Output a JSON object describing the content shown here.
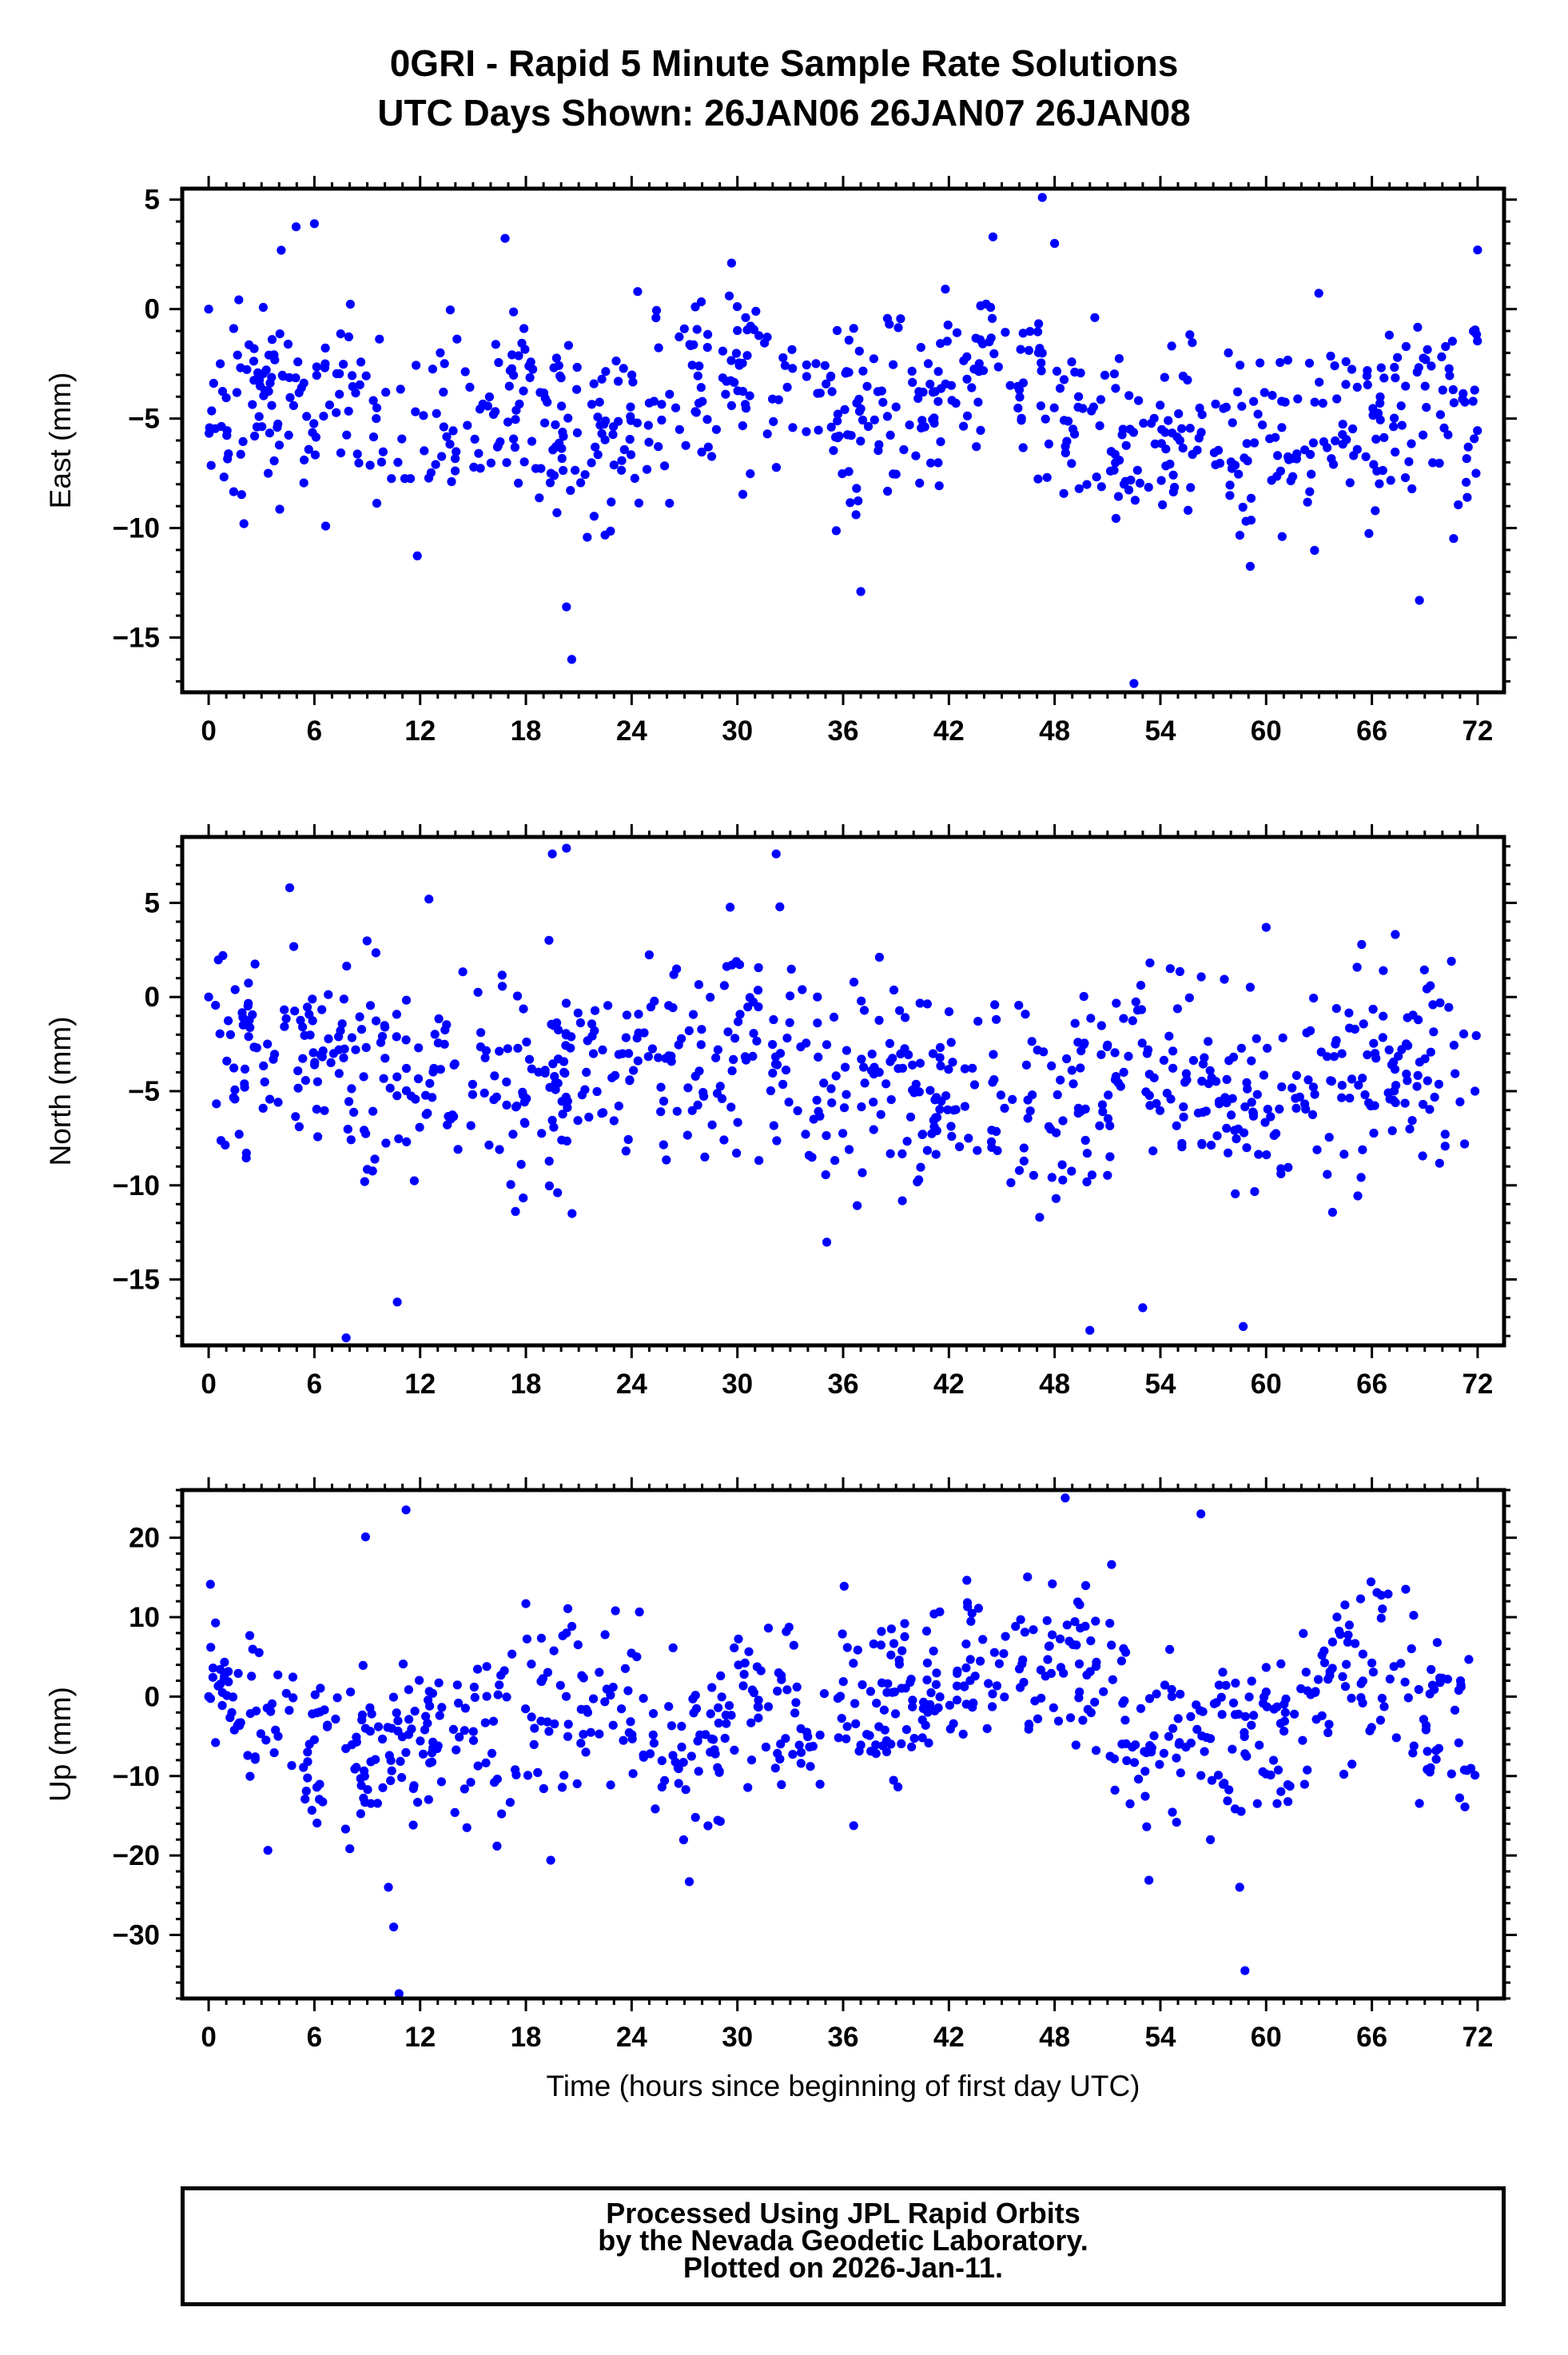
{
  "title": {
    "line1": "0GRI - Rapid 5 Minute Sample Rate Solutions",
    "line2": "UTC Days Shown:  26JAN06 26JAN07 26JAN08"
  },
  "footer": {
    "line1": "Processed Using JPL Rapid Orbits",
    "line2": "by the Nevada Geodetic Laboratory.",
    "line3": "Plotted on 2026-Jan-11."
  },
  "colors": {
    "points": "#0000ff",
    "axes": "#000000",
    "background": "#ffffff"
  },
  "chart_data": [
    {
      "type": "scatter",
      "title": "",
      "xlabel": "",
      "ylabel": "East (mm)",
      "xlim": [
        -1.5,
        73.5
      ],
      "ylim": [
        -17.5,
        5.5
      ],
      "xticks": [
        0,
        6,
        12,
        18,
        24,
        30,
        36,
        42,
        48,
        54,
        60,
        66,
        72
      ],
      "yticks": [
        5,
        0,
        -5,
        -10,
        -15
      ],
      "yticklabels": [
        "5",
        "0",
        "−5",
        "−10",
        "−15"
      ],
      "grid": false,
      "series": [
        {
          "x": [],
          "y": []
        }
      ]
    },
    {
      "type": "scatter",
      "title": "",
      "xlabel": "",
      "ylabel": "North (mm)",
      "xlim": [
        -1.5,
        73.5
      ],
      "ylim": [
        -18.5,
        8.5
      ],
      "xticks": [
        0,
        6,
        12,
        18,
        24,
        30,
        36,
        42,
        48,
        54,
        60,
        66,
        72
      ],
      "yticks": [
        5,
        0,
        -5,
        -10,
        -15
      ],
      "yticklabels": [
        "5",
        "0",
        "−5",
        "−10",
        "−15"
      ],
      "grid": false,
      "series": [
        {
          "x": [],
          "y": []
        }
      ]
    },
    {
      "type": "scatter",
      "title": "",
      "xlabel": "Time (hours since beginning of first day UTC)",
      "ylabel": "Up (mm)",
      "xlim": [
        -1.5,
        73.5
      ],
      "ylim": [
        -38,
        26
      ],
      "xticks": [
        0,
        6,
        12,
        18,
        24,
        30,
        36,
        42,
        48,
        54,
        60,
        66,
        72
      ],
      "yticks": [
        20,
        10,
        0,
        -10,
        -20,
        -30
      ],
      "yticklabels": [
        "20",
        "10",
        "0",
        "−10",
        "−20",
        "−30"
      ],
      "grid": false,
      "series": [
        {
          "x": [],
          "y": []
        }
      ]
    }
  ]
}
